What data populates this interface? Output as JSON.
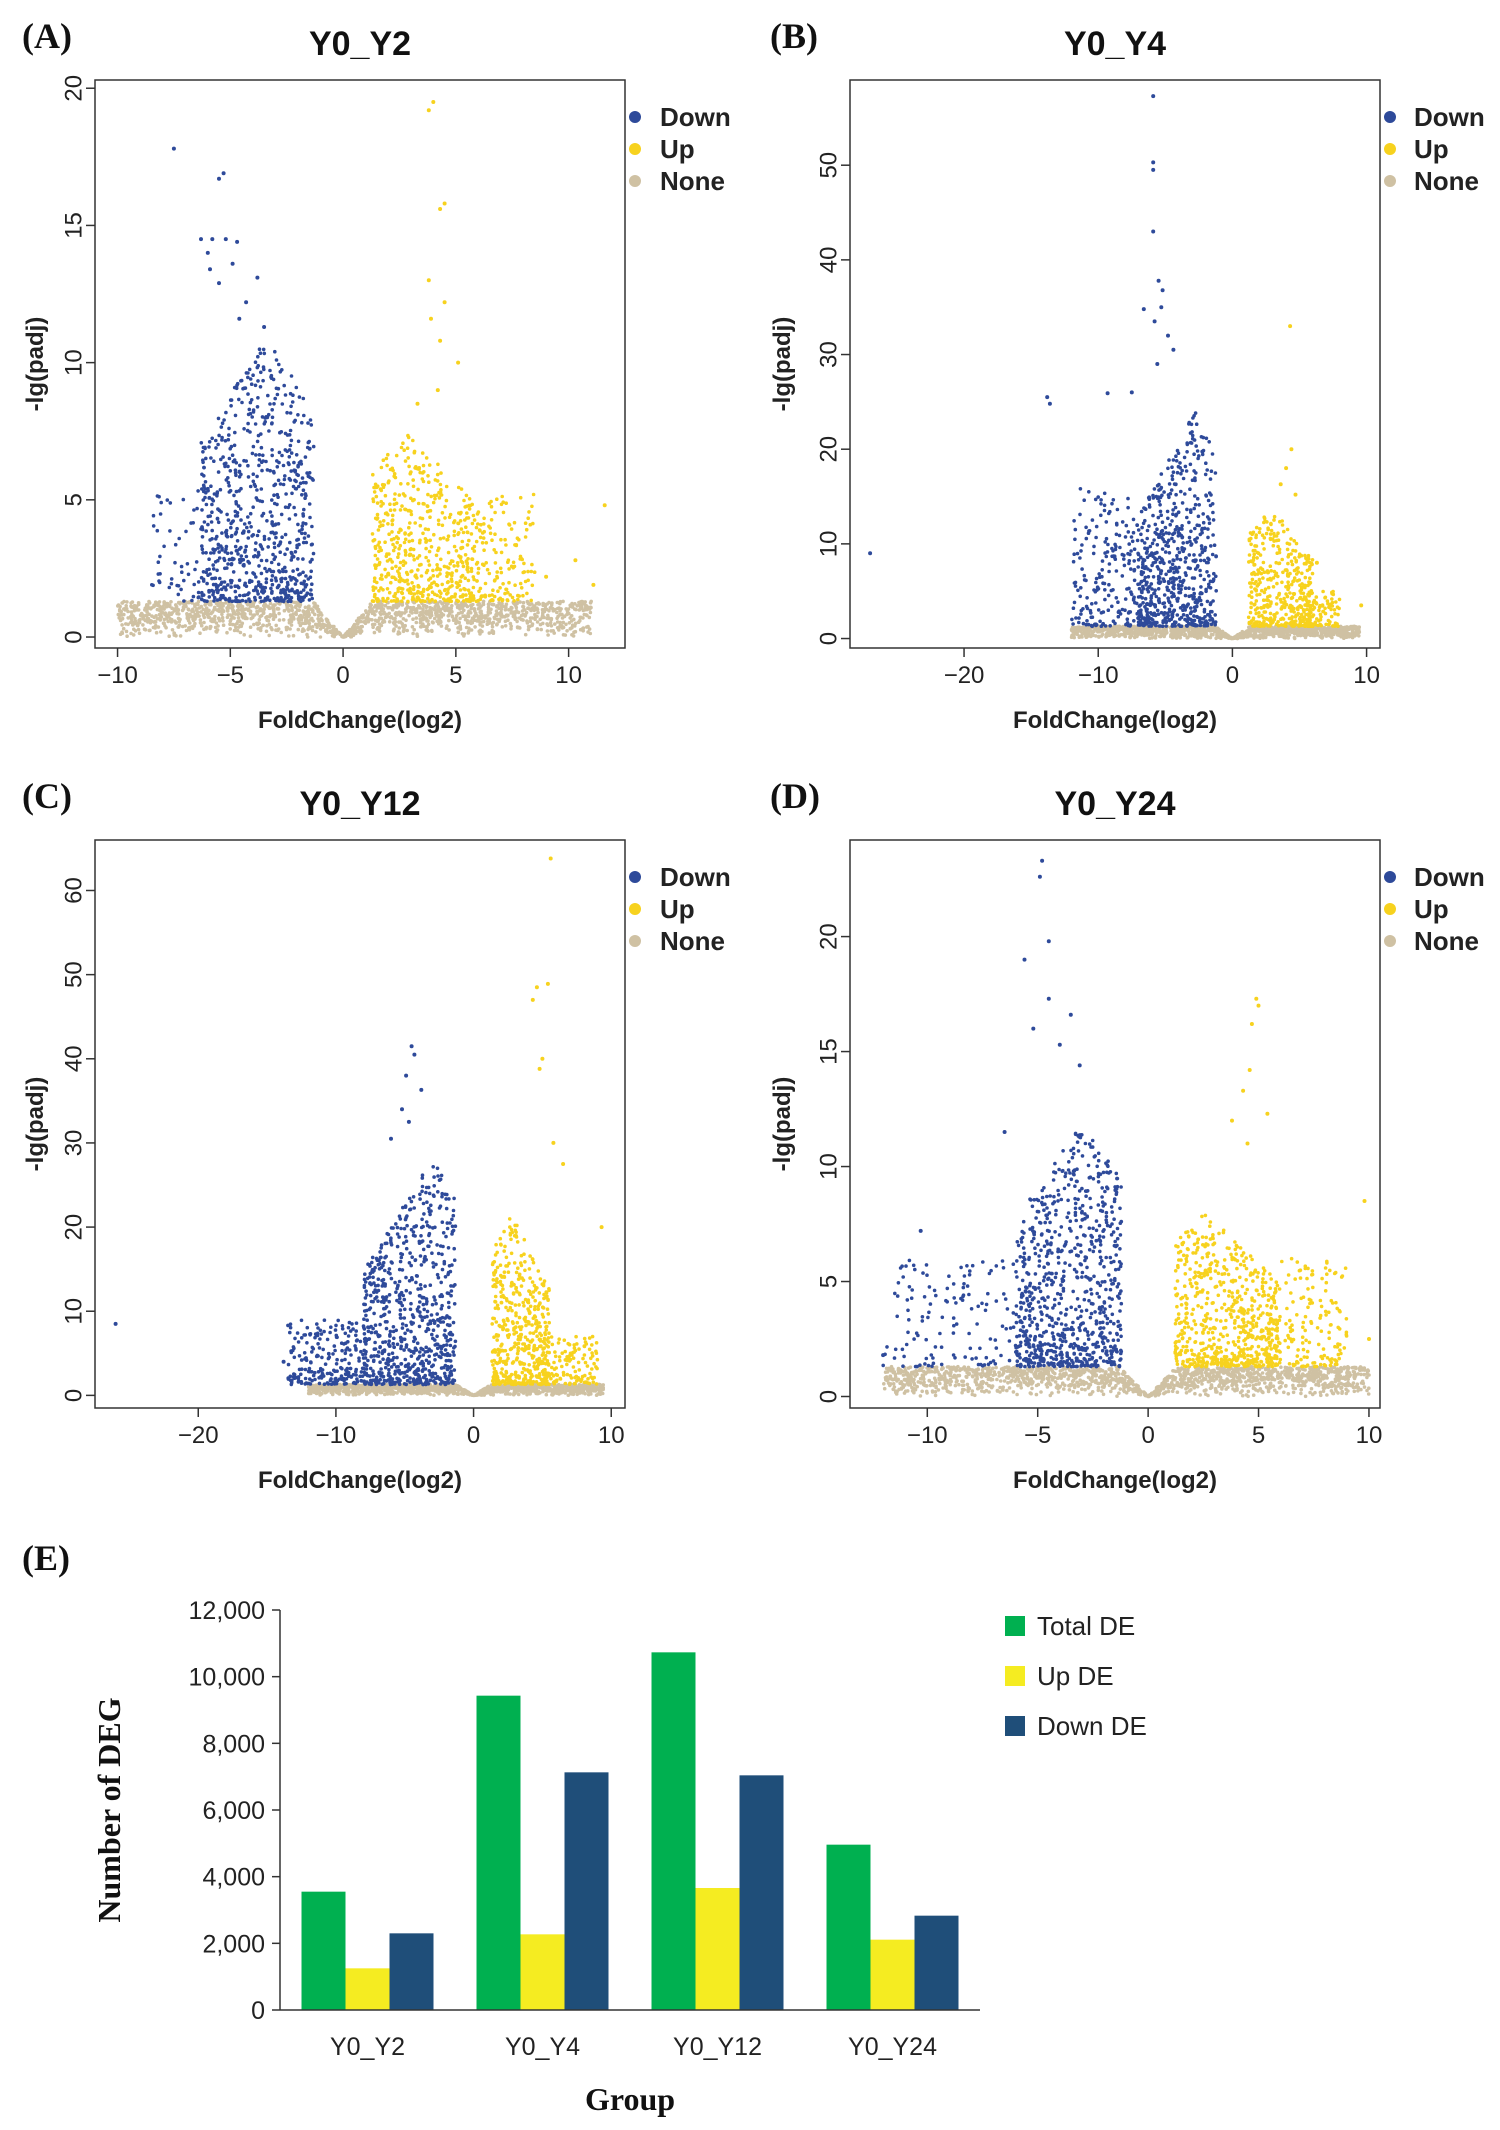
{
  "chart_data": [
    {
      "panel": "(A)",
      "type": "scatter",
      "title": "Y0_Y2",
      "xlabel": "FoldChange(log2)",
      "ylabel": "-lg(padj)",
      "xlim": [
        -11,
        12.5
      ],
      "ylim": [
        -0.4,
        20.3
      ],
      "xticks": [
        -10,
        -5,
        0,
        5,
        10
      ],
      "yticks": [
        0,
        5,
        10,
        15,
        20
      ],
      "xtick_labels": [
        "−10",
        "−5",
        "0",
        "5",
        "10"
      ],
      "ytick_labels": [
        "0",
        "5",
        "10",
        "15",
        "20"
      ],
      "legend": [
        "Down",
        "Up",
        "None"
      ],
      "colors": {
        "Down": "#2e4a9a",
        "Up": "#f7d21e",
        "None": "#cfc1a3"
      },
      "series": [
        {
          "name": "None",
          "clouds": [
            {
              "x0": -10,
              "x1": 11,
              "ymin": 0,
              "ymax": 1.3,
              "vdip": 1.3,
              "n": 1500
            }
          ]
        },
        {
          "name": "Down",
          "clouds": [
            {
              "x0": -6.3,
              "x1": -1.3,
              "ymin": 1.3,
              "ymax": 11,
              "peak": -3.3,
              "n": 750
            },
            {
              "x0": -8.5,
              "x1": -6,
              "ymin": 1.3,
              "ymax": 5.5,
              "n": 60
            }
          ],
          "points": [
            [
              -7.5,
              17.8
            ],
            [
              -5.3,
              16.9
            ],
            [
              -5.5,
              16.7
            ],
            [
              -6.3,
              14.5
            ],
            [
              -5.8,
              14.5
            ],
            [
              -5.2,
              14.5
            ],
            [
              -4.7,
              14.4
            ],
            [
              -6.0,
              14.0
            ],
            [
              -5.9,
              13.4
            ],
            [
              -4.9,
              13.6
            ],
            [
              -5.5,
              12.9
            ],
            [
              -3.8,
              13.1
            ],
            [
              -4.3,
              12.2
            ],
            [
              -4.6,
              11.6
            ],
            [
              -3.5,
              11.3
            ]
          ]
        },
        {
          "name": "Up",
          "clouds": [
            {
              "x0": 1.3,
              "x1": 6,
              "ymin": 1.3,
              "ymax": 7.5,
              "peak": 2.8,
              "n": 550
            },
            {
              "x0": 6,
              "x1": 8.5,
              "ymin": 1.3,
              "ymax": 5.2,
              "n": 130
            }
          ],
          "points": [
            [
              4.0,
              19.5
            ],
            [
              3.8,
              19.2
            ],
            [
              4.5,
              15.8
            ],
            [
              4.3,
              15.6
            ],
            [
              3.8,
              13.0
            ],
            [
              4.5,
              12.2
            ],
            [
              3.9,
              11.6
            ],
            [
              4.3,
              10.8
            ],
            [
              5.1,
              10.0
            ],
            [
              4.2,
              9.0
            ],
            [
              3.3,
              8.5
            ],
            [
              10.3,
              2.8
            ],
            [
              11.1,
              1.9
            ],
            [
              11.6,
              4.8
            ],
            [
              9.0,
              2.2
            ]
          ]
        }
      ]
    },
    {
      "panel": "(B)",
      "type": "scatter",
      "title": "Y0_Y4",
      "xlabel": "FoldChange(log2)",
      "ylabel": "-lg(padj)",
      "xlim": [
        -28.5,
        11
      ],
      "ylim": [
        -1,
        59
      ],
      "xticks": [
        -20,
        -10,
        0,
        10
      ],
      "yticks": [
        0,
        10,
        20,
        30,
        40,
        50
      ],
      "xtick_labels": [
        "−20",
        "−10",
        "0",
        "10"
      ],
      "ytick_labels": [
        "0",
        "10",
        "20",
        "30",
        "40",
        "50"
      ],
      "legend": [
        "Down",
        "Up",
        "None"
      ],
      "colors": {
        "Down": "#2e4a9a",
        "Up": "#f7d21e",
        "None": "#cfc1a3"
      },
      "series": [
        {
          "name": "None",
          "clouds": [
            {
              "x0": -12,
              "x1": 9.5,
              "ymin": 0,
              "ymax": 1.3,
              "vdip": 1.3,
              "n": 1200
            }
          ]
        },
        {
          "name": "Down",
          "clouds": [
            {
              "x0": -7,
              "x1": -1.2,
              "ymin": 1.3,
              "ymax": 24,
              "peak": -2.8,
              "n": 650
            },
            {
              "x0": -12,
              "x1": -7,
              "ymin": 1.3,
              "ymax": 16,
              "n": 200
            }
          ],
          "points": [
            [
              -5.9,
              57.3
            ],
            [
              -5.9,
              50.3
            ],
            [
              -5.9,
              49.5
            ],
            [
              -5.9,
              43.0
            ],
            [
              -5.5,
              37.8
            ],
            [
              -5.2,
              36.8
            ],
            [
              -5.3,
              35.0
            ],
            [
              -6.6,
              34.8
            ],
            [
              -5.8,
              33.5
            ],
            [
              -4.8,
              32.0
            ],
            [
              -4.4,
              30.5
            ],
            [
              -5.6,
              29.0
            ],
            [
              -13.8,
              25.5
            ],
            [
              -13.6,
              24.8
            ],
            [
              -9.3,
              25.9
            ],
            [
              -27,
              9.0
            ],
            [
              -7.5,
              26.0
            ]
          ]
        },
        {
          "name": "Up",
          "clouds": [
            {
              "x0": 1.2,
              "x1": 6,
              "ymin": 1.3,
              "ymax": 14,
              "peak": 2.8,
              "n": 420
            },
            {
              "x0": 5.5,
              "x1": 8,
              "ymin": 1.3,
              "ymax": 5,
              "n": 80
            }
          ],
          "points": [
            [
              4.3,
              33.0
            ],
            [
              4.4,
              20.0
            ],
            [
              4.0,
              18.0
            ],
            [
              3.6,
              16.3
            ],
            [
              4.7,
              15.2
            ],
            [
              6.3,
              8.0
            ],
            [
              9.6,
              3.5
            ]
          ]
        }
      ]
    },
    {
      "panel": "(C)",
      "type": "scatter",
      "title": "Y0_Y12",
      "xlabel": "FoldChange(log2)",
      "ylabel": "-lg(padj)",
      "xlim": [
        -27.5,
        11
      ],
      "ylim": [
        -1.5,
        66
      ],
      "xticks": [
        -20,
        -10,
        0,
        10
      ],
      "yticks": [
        0,
        10,
        20,
        30,
        40,
        50,
        60
      ],
      "xtick_labels": [
        "−20",
        "−10",
        "0",
        "10"
      ],
      "ytick_labels": [
        "0",
        "10",
        "20",
        "30",
        "40",
        "50",
        "60"
      ],
      "legend": [
        "Down",
        "Up",
        "None"
      ],
      "colors": {
        "Down": "#2e4a9a",
        "Up": "#f7d21e",
        "None": "#cfc1a3"
      },
      "series": [
        {
          "name": "None",
          "clouds": [
            {
              "x0": -12,
              "x1": 9.5,
              "ymin": 0,
              "ymax": 1.3,
              "vdip": 1.3,
              "n": 1200
            }
          ]
        },
        {
          "name": "Down",
          "clouds": [
            {
              "x0": -8,
              "x1": -1.3,
              "ymin": 1.3,
              "ymax": 28,
              "peak": -3.0,
              "n": 750
            },
            {
              "x0": -13.5,
              "x1": -8,
              "ymin": 1.3,
              "ymax": 9,
              "n": 220
            }
          ],
          "points": [
            [
              -4.5,
              41.5
            ],
            [
              -4.3,
              40.5
            ],
            [
              -4.9,
              38.0
            ],
            [
              -3.8,
              36.3
            ],
            [
              -5.2,
              34.0
            ],
            [
              -4.7,
              32.5
            ],
            [
              -6.0,
              30.5
            ],
            [
              -26,
              8.5
            ],
            [
              -13.8,
              4.0
            ]
          ]
        },
        {
          "name": "Up",
          "clouds": [
            {
              "x0": 1.3,
              "x1": 5.5,
              "ymin": 1.3,
              "ymax": 22,
              "peak": 2.7,
              "n": 500
            },
            {
              "x0": 5,
              "x1": 9,
              "ymin": 1.3,
              "ymax": 7,
              "n": 120
            }
          ],
          "points": [
            [
              5.6,
              63.8
            ],
            [
              5.4,
              48.9
            ],
            [
              4.6,
              48.5
            ],
            [
              4.3,
              47.0
            ],
            [
              5.0,
              40.0
            ],
            [
              4.8,
              38.8
            ],
            [
              5.8,
              30.0
            ],
            [
              9.3,
              20.0
            ],
            [
              6.5,
              27.5
            ]
          ]
        }
      ]
    },
    {
      "panel": "(D)",
      "type": "scatter",
      "title": "Y0_Y24",
      "xlabel": "FoldChange(log2)",
      "ylabel": "-lg(padj)",
      "xlim": [
        -13.5,
        10.5
      ],
      "ylim": [
        -0.5,
        24.2
      ],
      "xticks": [
        -10,
        -5,
        0,
        5,
        10
      ],
      "yticks": [
        0,
        5,
        10,
        15,
        20
      ],
      "xtick_labels": [
        "−10",
        "−5",
        "0",
        "5",
        "10"
      ],
      "ytick_labels": [
        "0",
        "5",
        "10",
        "15",
        "20"
      ],
      "legend": [
        "Down",
        "Up",
        "None"
      ],
      "colors": {
        "Down": "#2e4a9a",
        "Up": "#f7d21e",
        "None": "#cfc1a3"
      },
      "series": [
        {
          "name": "None",
          "clouds": [
            {
              "x0": -12,
              "x1": 10,
              "ymin": 0,
              "ymax": 1.3,
              "vdip": 1.3,
              "n": 1500
            }
          ]
        },
        {
          "name": "Down",
          "clouds": [
            {
              "x0": -6,
              "x1": -1.2,
              "ymin": 1.3,
              "ymax": 12,
              "peak": -3.0,
              "n": 800
            },
            {
              "x0": -12,
              "x1": -6,
              "ymin": 1.3,
              "ymax": 6,
              "n": 130
            }
          ],
          "points": [
            [
              -4.8,
              23.3
            ],
            [
              -4.9,
              22.6
            ],
            [
              -4.5,
              19.8
            ],
            [
              -5.6,
              19.0
            ],
            [
              -4.5,
              17.3
            ],
            [
              -3.5,
              16.6
            ],
            [
              -5.2,
              16.0
            ],
            [
              -4.0,
              15.3
            ],
            [
              -6.5,
              11.5
            ],
            [
              -3.1,
              14.4
            ],
            [
              -12,
              1.8
            ],
            [
              -10.3,
              7.2
            ]
          ]
        },
        {
          "name": "Up",
          "clouds": [
            {
              "x0": 1.2,
              "x1": 6,
              "ymin": 1.3,
              "ymax": 8,
              "peak": 2.6,
              "n": 650
            },
            {
              "x0": 6,
              "x1": 9,
              "ymin": 1.3,
              "ymax": 6,
              "n": 140
            }
          ],
          "points": [
            [
              4.9,
              17.3
            ],
            [
              5.0,
              17.0
            ],
            [
              4.7,
              16.2
            ],
            [
              4.6,
              14.2
            ],
            [
              4.3,
              13.3
            ],
            [
              5.4,
              12.3
            ],
            [
              3.8,
              12.0
            ],
            [
              4.5,
              11.0
            ],
            [
              9.8,
              8.5
            ],
            [
              10,
              2.5
            ]
          ]
        }
      ]
    },
    {
      "panel": "(E)",
      "type": "bar",
      "title": "",
      "categories": [
        "Y0_Y2",
        "Y0_Y4",
        "Y0_Y12",
        "Y0_Y24"
      ],
      "series": [
        {
          "name": "Total DE",
          "color": "#00b050",
          "values": [
            3550,
            9430,
            10730,
            4960
          ]
        },
        {
          "name": "Up DE",
          "color": "#f5ec21",
          "values": [
            1250,
            2270,
            3660,
            2110
          ]
        },
        {
          "name": "Down DE",
          "color": "#1f4e79",
          "values": [
            2300,
            7130,
            7040,
            2830
          ]
        }
      ],
      "xlabel": "Group",
      "ylabel": "Number of DEG",
      "ylim": [
        0,
        12000
      ],
      "yticks": [
        0,
        2000,
        4000,
        6000,
        8000,
        10000,
        12000
      ],
      "ytick_labels": [
        "0",
        "2,000",
        "4,000",
        "6,000",
        "8,000",
        "10,000",
        "12,000"
      ],
      "legend": [
        "Total DE",
        "Up DE",
        "Down DE"
      ]
    }
  ]
}
